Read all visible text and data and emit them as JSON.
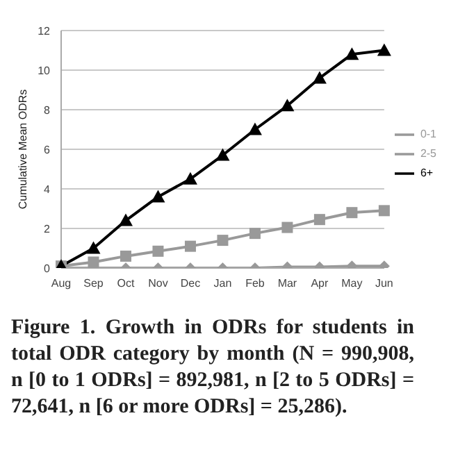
{
  "chart_data": {
    "type": "line",
    "ylabel": "Cumulative Mean ODRs",
    "categories": [
      "Aug",
      "Sep",
      "Oct",
      "Nov",
      "Dec",
      "Jan",
      "Feb",
      "Mar",
      "Apr",
      "May",
      "Jun"
    ],
    "series": [
      {
        "name": "0-1",
        "color": "#999999",
        "marker": "diamond",
        "values": [
          0,
          0,
          0,
          0,
          0,
          0,
          0,
          0.05,
          0.05,
          0.1,
          0.1
        ]
      },
      {
        "name": "2-5",
        "color": "#999999",
        "marker": "square",
        "values": [
          0.1,
          0.3,
          0.6,
          0.85,
          1.1,
          1.4,
          1.75,
          2.05,
          2.45,
          2.8,
          2.9
        ]
      },
      {
        "name": "6+",
        "color": "#000000",
        "marker": "triangle",
        "values": [
          0.1,
          1.0,
          2.4,
          3.6,
          4.5,
          5.7,
          7.0,
          8.2,
          9.6,
          10.8,
          11.0
        ]
      }
    ],
    "ylim": [
      0,
      12
    ],
    "yticks": [
      0,
      2,
      4,
      6,
      8,
      10,
      12
    ],
    "grid": "y",
    "legend": "right",
    "line_style": "solid",
    "annotations": [
      "Figure 1. Growth in ODRs for students in total ODR category by month (N = 990,908, n [0 to 1 ODRs] = 892,981, n [2 to 5 ODRs] = 72,641, n [6 or more ODRs] = 25,286)."
    ]
  }
}
